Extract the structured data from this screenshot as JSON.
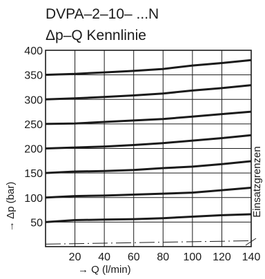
{
  "chart_data": {
    "type": "line",
    "title": "DVPA–2–10– ...N",
    "subtitle": "Δp–Q Kennlinie",
    "xlabel": "→ Q (l/min)",
    "ylabel": "→ Δp (bar)",
    "xlim": [
      0,
      140
    ],
    "ylim": [
      0,
      400
    ],
    "x_ticks": [
      "20",
      "40",
      "60",
      "80",
      "100",
      "120",
      "140"
    ],
    "y_ticks": [
      "50",
      "100",
      "150",
      "200",
      "250",
      "300",
      "350",
      "400"
    ],
    "grid": true,
    "x": [
      0,
      20,
      40,
      60,
      80,
      100,
      120,
      140
    ],
    "series": [
      {
        "values": [
          350,
          352,
          355,
          358,
          362,
          369,
          374,
          380
        ]
      },
      {
        "values": [
          300,
          302,
          305,
          308,
          312,
          318,
          323,
          329
        ]
      },
      {
        "values": [
          250,
          251,
          254,
          257,
          260,
          265,
          270,
          275
        ]
      },
      {
        "values": [
          200,
          202,
          204,
          207,
          211,
          216,
          221,
          227
        ]
      },
      {
        "values": [
          150,
          153,
          154,
          156,
          160,
          163,
          168,
          174
        ]
      },
      {
        "values": [
          100,
          103,
          104,
          106,
          108,
          110,
          115,
          120
        ]
      },
      {
        "values": [
          50,
          54,
          55,
          56,
          58,
          61,
          64,
          66
        ]
      }
    ],
    "limit_line": {
      "label": "Einsatzgrenzen",
      "values": [
        5,
        6,
        7,
        8,
        9,
        10,
        11,
        12
      ]
    },
    "colors": {
      "line": "#1a1a1a",
      "grid": "#1a1a1a"
    }
  }
}
